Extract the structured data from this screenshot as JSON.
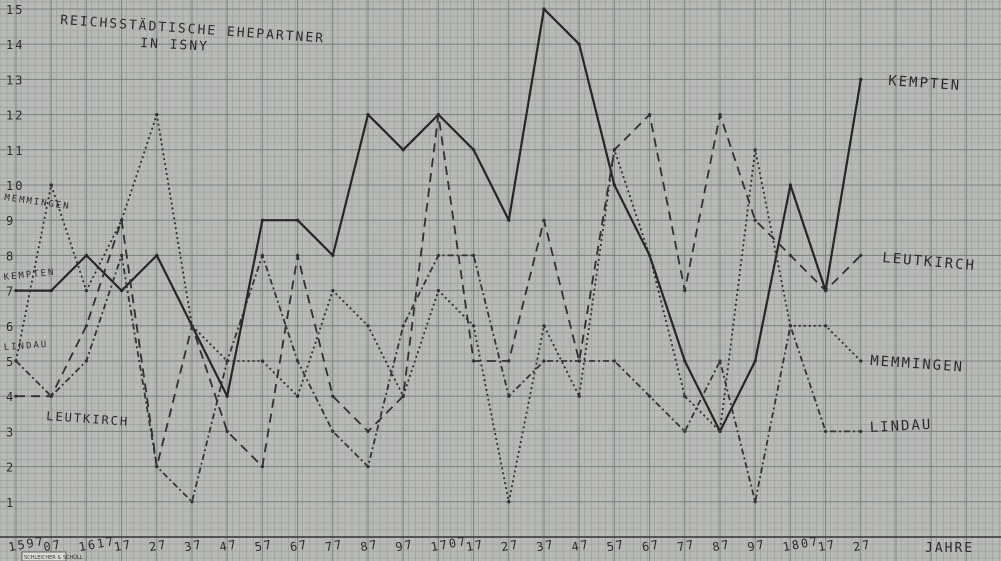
{
  "chart_data": {
    "type": "line",
    "title": "REICHSSTÄDTISCHE EHEPARTNER",
    "subtitle": "IN ISNY",
    "xlabel": "JAHRE",
    "ylabel": "",
    "ylim": [
      0,
      15
    ],
    "yticks": [
      "1",
      "2",
      "3",
      "4",
      "5",
      "6",
      "7",
      "8",
      "9",
      "10",
      "11",
      "12",
      "13",
      "14",
      "15"
    ],
    "xticks": [
      "1597",
      "07",
      "1617",
      "17",
      "27",
      "37",
      "47",
      "57",
      "67",
      "77",
      "87",
      "97",
      "1707",
      "17",
      "27",
      "37",
      "47",
      "57",
      "67",
      "77",
      "87",
      "97",
      "1807",
      "17",
      "27"
    ],
    "grid": true,
    "series": [
      {
        "name": "KEMPTEN",
        "start_label": "KEMPTEN",
        "color": "#262626",
        "dash": "",
        "values": [
          7,
          7,
          8,
          7,
          8,
          6,
          4,
          9,
          9,
          8,
          12,
          11,
          12,
          11,
          9,
          15,
          14,
          10,
          8,
          5,
          3,
          5,
          10,
          7,
          13
        ]
      },
      {
        "name": "LEUTKIRCH",
        "start_label": "LEUTKIRCH",
        "color": "#303030",
        "dash": "9,6",
        "values": [
          4,
          4,
          6,
          9,
          2,
          6,
          3,
          2,
          8,
          4,
          3,
          4,
          12,
          5,
          5,
          9,
          5,
          11,
          12,
          7,
          12,
          9,
          8,
          7,
          8
        ]
      },
      {
        "name": "MEMMINGEN",
        "start_label": "MEMMINGEN",
        "color": "#2e2e2e",
        "dash": "2,3",
        "values": [
          5,
          10,
          7,
          9,
          12,
          6,
          5,
          5,
          4,
          7,
          6,
          4,
          7,
          6,
          1,
          6,
          4,
          11,
          8,
          4,
          3,
          11,
          6,
          6,
          5
        ]
      },
      {
        "name": "LINDAU",
        "start_label": "LINDAU",
        "color": "#333333",
        "dash": "6,3,2,3",
        "values": [
          5,
          4,
          5,
          8,
          2,
          1,
          5,
          8,
          5,
          3,
          2,
          6,
          8,
          8,
          4,
          5,
          5,
          5,
          4,
          3,
          5,
          1,
          6,
          3,
          3
        ]
      }
    ]
  },
  "footer_stamp": "SCHLEICHER & SCHÜLL"
}
